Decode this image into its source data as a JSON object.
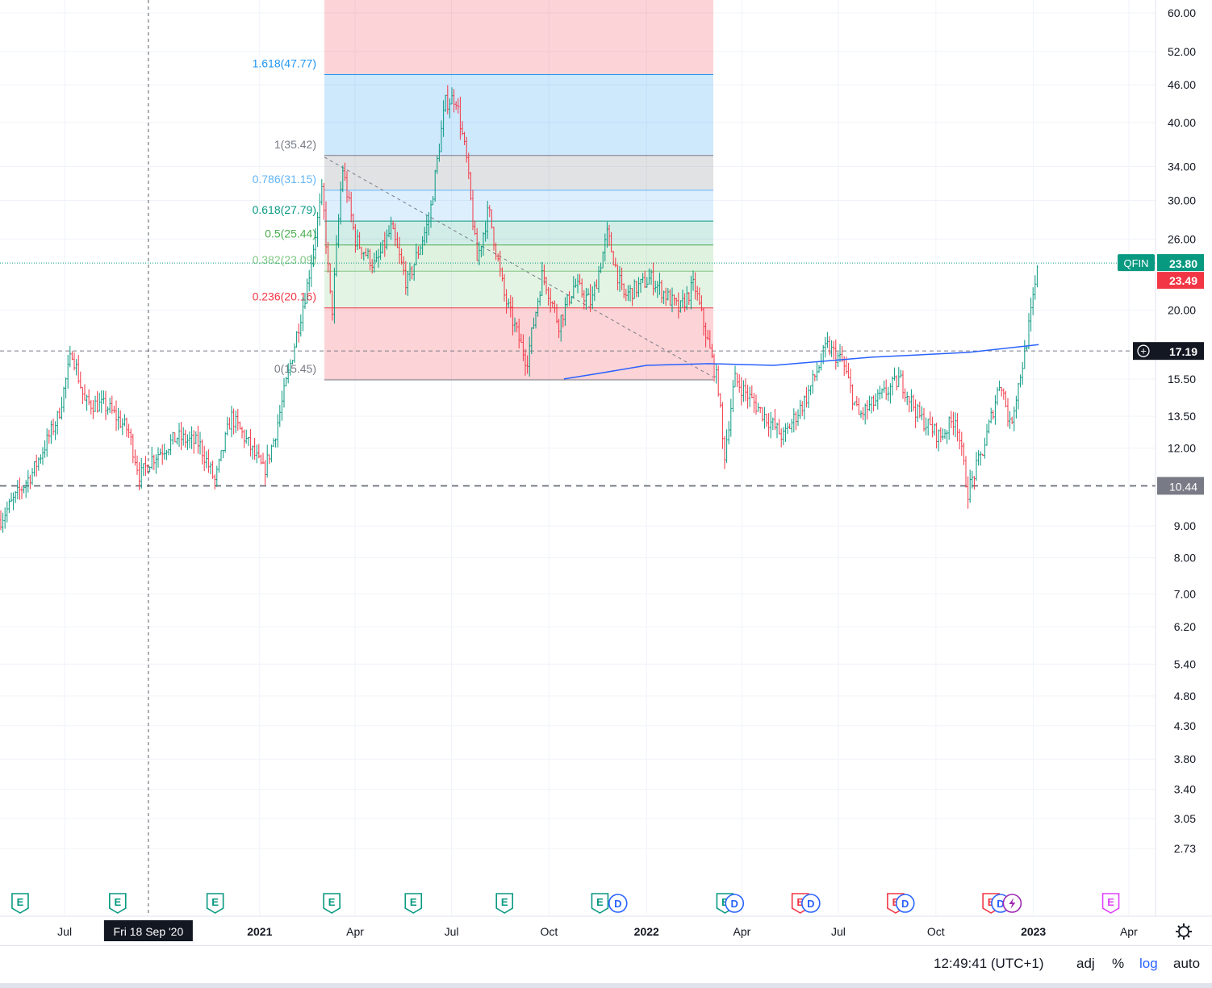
{
  "chart_data": {
    "type": "candlestick",
    "symbol": "QFIN",
    "scale": "log",
    "grid": true,
    "price_axis": {
      "ticks": [
        "60.00",
        "52.00",
        "46.00",
        "40.00",
        "34.00",
        "30.00",
        "26.00",
        "20.00",
        "15.50",
        "13.50",
        "12.00",
        "9.00",
        "8.00",
        "7.00",
        "6.20",
        "5.40",
        "4.80",
        "4.30",
        "3.80",
        "3.40",
        "3.05",
        "2.73"
      ]
    },
    "time_axis": {
      "ticks": [
        "Jul",
        "2021",
        "Apr",
        "Jul",
        "Oct",
        "2022",
        "Apr",
        "Jul",
        "Oct",
        "2023",
        "Apr"
      ],
      "bold": [
        "2021",
        "2022",
        "2023"
      ],
      "crosshair_label": "Fri 18 Sep '20"
    },
    "price_labels": {
      "symbol": "QFIN",
      "last": "23.80",
      "prev": "23.49",
      "crosshair": "17.19",
      "line": "10.44"
    },
    "fib_levels": [
      {
        "label": "1.618(47.77)",
        "value": 47.77,
        "color": "#2196f3"
      },
      {
        "label": "1(35.42)",
        "value": 35.42,
        "color": "#787b86"
      },
      {
        "label": "0.786(31.15)",
        "value": 31.15,
        "color": "#64b5f6"
      },
      {
        "label": "0.618(27.79)",
        "value": 27.79,
        "color": "#089981"
      },
      {
        "label": "0.5(25.44)",
        "value": 25.44,
        "color": "#4caf50"
      },
      {
        "label": "0.382(23.09)",
        "value": 23.09,
        "color": "#81c784"
      },
      {
        "label": "0.236(20.16)",
        "value": 20.16,
        "color": "#f23645"
      },
      {
        "label": "0(15.45)",
        "value": 15.45,
        "color": "#787b86"
      }
    ],
    "horizontal_lines": [
      10.44,
      17.19
    ],
    "last_price_line": 23.8,
    "price_path": [
      {
        "t": "2020-05-01",
        "p": 9.2
      },
      {
        "t": "2020-06-01",
        "p": 11.0
      },
      {
        "t": "2020-06-25",
        "p": 13.5
      },
      {
        "t": "2020-07-08",
        "p": 17.2
      },
      {
        "t": "2020-07-20",
        "p": 14.2
      },
      {
        "t": "2020-08-10",
        "p": 14.0
      },
      {
        "t": "2020-08-30",
        "p": 12.8
      },
      {
        "t": "2020-09-10",
        "p": 10.8
      },
      {
        "t": "2020-09-20",
        "p": 11.5
      },
      {
        "t": "2020-10-15",
        "p": 12.5
      },
      {
        "t": "2020-11-05",
        "p": 12.2
      },
      {
        "t": "2020-11-20",
        "p": 10.6
      },
      {
        "t": "2020-12-05",
        "p": 13.5
      },
      {
        "t": "2020-12-20",
        "p": 12.3
      },
      {
        "t": "2021-01-05",
        "p": 11.0
      },
      {
        "t": "2021-01-15",
        "p": 12.5
      },
      {
        "t": "2021-02-01",
        "p": 17.0
      },
      {
        "t": "2021-02-15",
        "p": 22.0
      },
      {
        "t": "2021-03-01",
        "p": 31.0
      },
      {
        "t": "2021-03-10",
        "p": 19.5
      },
      {
        "t": "2021-03-20",
        "p": 34.0
      },
      {
        "t": "2021-04-01",
        "p": 26.0
      },
      {
        "t": "2021-04-20",
        "p": 23.5
      },
      {
        "t": "2021-05-05",
        "p": 27.0
      },
      {
        "t": "2021-05-20",
        "p": 22.0
      },
      {
        "t": "2021-06-10",
        "p": 28.0
      },
      {
        "t": "2021-06-25",
        "p": 43.0
      },
      {
        "t": "2021-07-05",
        "p": 44.0
      },
      {
        "t": "2021-07-15",
        "p": 35.0
      },
      {
        "t": "2021-07-25",
        "p": 24.0
      },
      {
        "t": "2021-08-05",
        "p": 29.0
      },
      {
        "t": "2021-08-20",
        "p": 21.0
      },
      {
        "t": "2021-09-10",
        "p": 16.5
      },
      {
        "t": "2021-09-25",
        "p": 23.0
      },
      {
        "t": "2021-10-10",
        "p": 19.0
      },
      {
        "t": "2021-10-25",
        "p": 22.0
      },
      {
        "t": "2021-11-10",
        "p": 20.5
      },
      {
        "t": "2021-11-25",
        "p": 26.5
      },
      {
        "t": "2021-12-10",
        "p": 21.0
      },
      {
        "t": "2022-01-05",
        "p": 22.5
      },
      {
        "t": "2022-02-01",
        "p": 20.0
      },
      {
        "t": "2022-02-15",
        "p": 22.0
      },
      {
        "t": "2022-03-10",
        "p": 15.0
      },
      {
        "t": "2022-03-15",
        "p": 11.5
      },
      {
        "t": "2022-03-25",
        "p": 15.5
      },
      {
        "t": "2022-04-15",
        "p": 14.0
      },
      {
        "t": "2022-05-10",
        "p": 12.5
      },
      {
        "t": "2022-06-01",
        "p": 14.5
      },
      {
        "t": "2022-06-20",
        "p": 17.5
      },
      {
        "t": "2022-07-05",
        "p": 16.5
      },
      {
        "t": "2022-07-20",
        "p": 13.5
      },
      {
        "t": "2022-08-10",
        "p": 14.5
      },
      {
        "t": "2022-08-28",
        "p": 15.5
      },
      {
        "t": "2022-09-15",
        "p": 13.5
      },
      {
        "t": "2022-10-05",
        "p": 12.5
      },
      {
        "t": "2022-10-20",
        "p": 13.5
      },
      {
        "t": "2022-10-31",
        "p": 10.2
      },
      {
        "t": "2022-11-15",
        "p": 12.0
      },
      {
        "t": "2022-12-01",
        "p": 15.5
      },
      {
        "t": "2022-12-10",
        "p": 13.0
      },
      {
        "t": "2022-12-25",
        "p": 17.5
      },
      {
        "t": "2023-01-06",
        "p": 23.8
      }
    ],
    "moving_average": [
      {
        "t": "2021-10-15",
        "p": 15.5
      },
      {
        "t": "2021-11-15",
        "p": 15.8
      },
      {
        "t": "2022-01-01",
        "p": 16.3
      },
      {
        "t": "2022-03-01",
        "p": 16.4
      },
      {
        "t": "2022-05-01",
        "p": 16.3
      },
      {
        "t": "2022-08-01",
        "p": 16.8
      },
      {
        "t": "2022-11-01",
        "p": 17.1
      },
      {
        "t": "2023-01-06",
        "p": 17.6
      }
    ],
    "events": [
      {
        "type": "E",
        "color": "#089981",
        "t": "2020-05-20"
      },
      {
        "type": "E",
        "color": "#089981",
        "t": "2020-08-20"
      },
      {
        "type": "E",
        "color": "#089981",
        "t": "2020-11-20"
      },
      {
        "type": "E",
        "color": "#089981",
        "t": "2021-03-10"
      },
      {
        "type": "E",
        "color": "#089981",
        "t": "2021-05-26"
      },
      {
        "type": "E",
        "color": "#089981",
        "t": "2021-08-20"
      },
      {
        "type": "E",
        "color": "#089981",
        "t": "2021-11-18"
      },
      {
        "type": "D",
        "color": "#2962ff",
        "t": "2021-12-05"
      },
      {
        "type": "E",
        "color": "#089981",
        "t": "2022-03-16"
      },
      {
        "type": "D",
        "color": "#2962ff",
        "t": "2022-03-25"
      },
      {
        "type": "E",
        "color": "#f23645",
        "t": "2022-05-26"
      },
      {
        "type": "D",
        "color": "#2962ff",
        "t": "2022-06-05"
      },
      {
        "type": "E",
        "color": "#f23645",
        "t": "2022-08-24"
      },
      {
        "type": "D",
        "color": "#2962ff",
        "t": "2022-09-02"
      },
      {
        "type": "E",
        "color": "#f23645",
        "t": "2022-11-22"
      },
      {
        "type": "D",
        "color": "#2962ff",
        "t": "2022-12-01"
      },
      {
        "type": "split",
        "color": "#9c27b0",
        "t": "2022-12-12"
      },
      {
        "type": "E",
        "color": "#e040fb",
        "t": "2023-03-15"
      }
    ]
  },
  "statusbar": {
    "time": "12:49:41 (UTC+1)",
    "adj": "adj",
    "percent": "%",
    "log": "log",
    "auto": "auto"
  }
}
